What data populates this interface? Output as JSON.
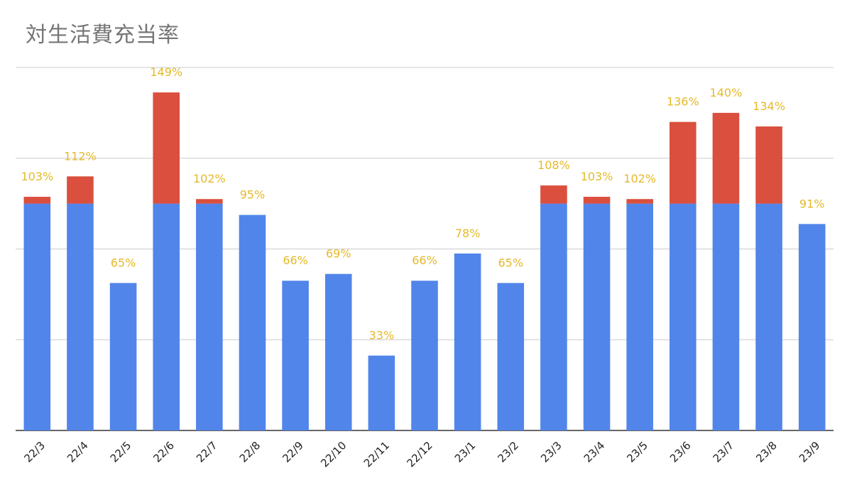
{
  "chart_data": {
    "type": "bar",
    "stacked": true,
    "title": "対生活費充当率",
    "categories": [
      "22/3",
      "22/4",
      "22/5",
      "22/6",
      "22/7",
      "22/8",
      "22/9",
      "22/10",
      "22/11",
      "22/12",
      "23/1",
      "23/2",
      "23/3",
      "23/4",
      "23/5",
      "23/6",
      "23/7",
      "23/8",
      "23/9"
    ],
    "series": [
      {
        "values": [
          100,
          100,
          65,
          100,
          100,
          95,
          66,
          69,
          33,
          66,
          78,
          65,
          100,
          100,
          100,
          100,
          100,
          100,
          91
        ]
      },
      {
        "values": [
          3,
          12,
          0,
          49,
          2,
          0,
          0,
          0,
          0,
          0,
          0,
          0,
          8,
          3,
          2,
          36,
          40,
          34,
          0
        ]
      }
    ],
    "data_labels": [
      "103%",
      "112%",
      "65%",
      "149%",
      "102%",
      "95%",
      "66%",
      "69%",
      "33%",
      "66%",
      "78%",
      "65%",
      "108%",
      "103%",
      "102%",
      "136%",
      "140%",
      "134%",
      "91%"
    ],
    "ylim": [
      0,
      160
    ],
    "grid": true,
    "colors": {
      "series": [
        "#5185ea",
        "#da4f3d"
      ],
      "data_label": "#e6b929",
      "grid": "#cccccc",
      "axis": "#333333"
    }
  }
}
